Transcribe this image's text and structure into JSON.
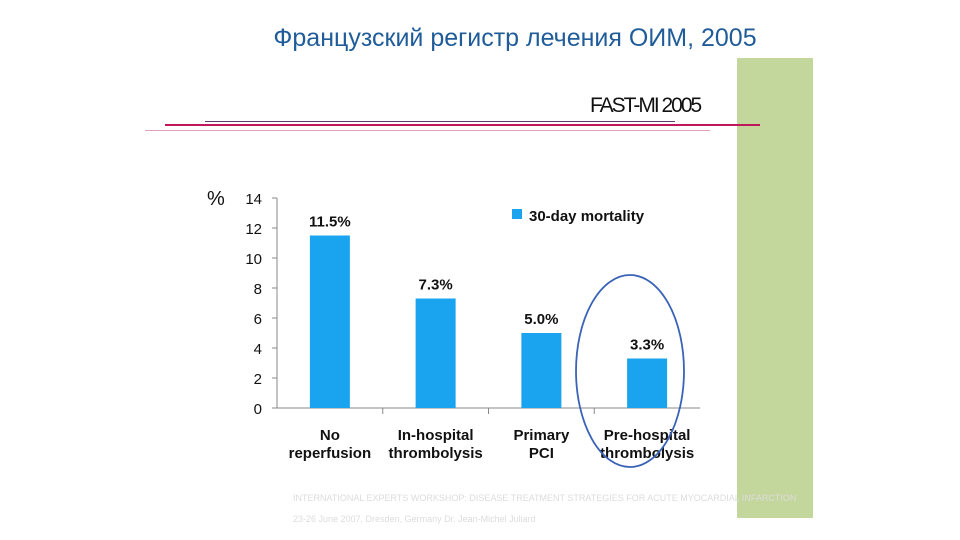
{
  "slide": {
    "title": "Французский регистр лечения ОИМ, 2005",
    "registry_label": "FAST-MI 2005",
    "footer_line1": "INTERNATIONAL EXPERTS WORKSHOP: DISEASE TREATMENT STRATEGIES FOR ACUTE MYOCARDIAL INFARCTION",
    "footer_line2": "23-26 June 2007, Dresden, Germany   Dr. Jean-Michel Juliard",
    "colors": {
      "title": "#1f5c99",
      "bar": "#1aa3ee",
      "side_band": "#c3d69b",
      "highlight_ellipse": "#3a63b8",
      "rule_red": "#c0175c"
    }
  },
  "chart_data": {
    "type": "bar",
    "ylabel": "%",
    "ylim": [
      0,
      14
    ],
    "yticks": [
      "0",
      "2",
      "4",
      "6",
      "8",
      "10",
      "12",
      "14"
    ],
    "categories": [
      [
        "No",
        "reperfusion"
      ],
      [
        "In-hospital",
        "thrombolysis"
      ],
      [
        "Primary",
        "PCI"
      ],
      [
        "Pre-hospital",
        "thrombolysis"
      ]
    ],
    "series": [
      {
        "name": "30-day mortality",
        "values": [
          11.5,
          7.3,
          5.0,
          3.3
        ]
      }
    ],
    "data_labels": [
      "11.5%",
      "7.3%",
      "5.0%",
      "3.3%"
    ],
    "legend": "top-right",
    "grid": false,
    "highlighted_category": "Pre-hospital thrombolysis"
  }
}
